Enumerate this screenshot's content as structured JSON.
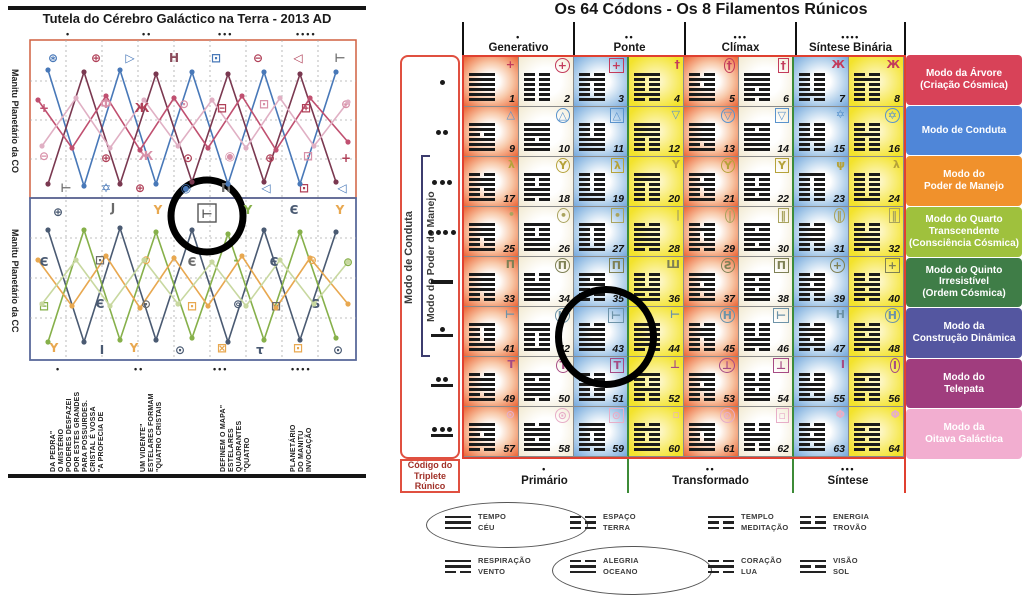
{
  "left_panel": {
    "title": "Tutela do Cérebro Galáctico na Terra - 2013 AD",
    "section_top_label": "Manitu Planetário da CO",
    "section_bottom_label": "Manitu Planetário da CC",
    "top_dots": [
      "•",
      "••",
      "•••",
      "••••"
    ],
    "bottom_dots": [
      "•",
      "••",
      "•••",
      "••••"
    ],
    "footnotes": [
      {
        "dots": "•",
        "lines": [
          "\"A PROFECIA DE",
          "CRISTAL É VOSSA",
          "PARA POSSUIRDES.",
          "POR ESTES GRANDES",
          "PODERES DESFAZEI",
          "O MISTÉRIO",
          "DA PEDRA\""
        ]
      },
      {
        "dots": "••",
        "lines": [
          "\"QUATRO CRISTAIS",
          "ESTELARES FORMAM",
          "UM VIDENTE\""
        ]
      },
      {
        "dots": "•••",
        "lines": [
          "\"QUATRO",
          "QUADRANTES",
          "ESTELARES",
          "DEFINEM O MAPA\""
        ]
      },
      {
        "dots": "••••",
        "lines": [
          "INVOCAÇÃO",
          "DO MANITU",
          "PLANETÁRIO"
        ]
      }
    ],
    "symbols": [
      [
        45,
        24,
        "⊛",
        "#4878b8"
      ],
      [
        88,
        24,
        "⊕",
        "#b04058"
      ],
      [
        122,
        24,
        "▷",
        "#4878b8"
      ],
      [
        166,
        24,
        "H",
        "#8a4a5a"
      ],
      [
        208,
        24,
        "⊡",
        "#4878b8"
      ],
      [
        250,
        24,
        "⊖",
        "#b04058"
      ],
      [
        290,
        24,
        "◁",
        "#b04058"
      ],
      [
        332,
        24,
        "⊢",
        "#707070"
      ],
      [
        36,
        74,
        "+",
        "#c05070"
      ],
      [
        98,
        70,
        "Ф",
        "#d890a8"
      ],
      [
        134,
        74,
        "Ж",
        "#b04058"
      ],
      [
        176,
        70,
        "⊙",
        "#d890a8"
      ],
      [
        214,
        74,
        "⊟",
        "#b04058"
      ],
      [
        256,
        70,
        "⊡",
        "#d890a8"
      ],
      [
        298,
        74,
        "⊞",
        "#b04058"
      ],
      [
        338,
        70,
        "⊕",
        "#d890a8"
      ],
      [
        36,
        122,
        "⊖",
        "#d890a8"
      ],
      [
        98,
        124,
        "⊕",
        "#b04058"
      ],
      [
        138,
        122,
        "Ж",
        "#d890a8"
      ],
      [
        180,
        124,
        "⊙",
        "#b04058"
      ],
      [
        222,
        122,
        "◉",
        "#d890a8"
      ],
      [
        262,
        124,
        "⊕",
        "#b04058"
      ],
      [
        300,
        122,
        "⊡",
        "#d890a8"
      ],
      [
        338,
        124,
        "+",
        "#b04058"
      ],
      [
        58,
        154,
        "⊢",
        "#707070"
      ],
      [
        98,
        154,
        "✡",
        "#4878b8"
      ],
      [
        132,
        154,
        "⊕",
        "#b04058"
      ],
      [
        178,
        154,
        "◉",
        "#4878b8"
      ],
      [
        218,
        154,
        "П",
        "#707070"
      ],
      [
        258,
        154,
        "◁",
        "#4878b8"
      ],
      [
        296,
        154,
        "⊡",
        "#b04058"
      ],
      [
        334,
        154,
        "◁",
        "#4878b8"
      ],
      [
        50,
        178,
        "⊕",
        "#4a5a72"
      ],
      [
        105,
        174,
        "J",
        "#6a6a6a"
      ],
      [
        150,
        176,
        "Y",
        "#e8a850"
      ],
      [
        240,
        176,
        "Y",
        "#86b04a"
      ],
      [
        286,
        176,
        "Є",
        "#4a5a72"
      ],
      [
        332,
        176,
        "Y",
        "#e8a850"
      ],
      [
        36,
        228,
        "Є",
        "#4a5a72"
      ],
      [
        92,
        226,
        "⊡",
        "#6a6a6a"
      ],
      [
        138,
        226,
        "⊙",
        "#e8a850"
      ],
      [
        184,
        228,
        "Є",
        "#6a6a6a"
      ],
      [
        228,
        226,
        "-",
        "#86b04a"
      ],
      [
        266,
        228,
        "Є",
        "#4a5a72"
      ],
      [
        304,
        226,
        "⊖",
        "#e8a850"
      ],
      [
        340,
        228,
        "⊖",
        "#86b04a"
      ],
      [
        36,
        272,
        "⊟",
        "#86b04a"
      ],
      [
        92,
        270,
        "Є",
        "#4a5a72"
      ],
      [
        138,
        270,
        "⊙",
        "#6a6a6a"
      ],
      [
        184,
        272,
        "⊡",
        "#e8a850"
      ],
      [
        230,
        270,
        "⊚",
        "#4a5a72"
      ],
      [
        268,
        272,
        "⊟",
        "#6a6a6a"
      ],
      [
        308,
        270,
        "S",
        "#4a5a72"
      ],
      [
        46,
        314,
        "Y",
        "#e8a850"
      ],
      [
        94,
        316,
        "I",
        "#4a5a72"
      ],
      [
        126,
        314,
        "Y",
        "#e8a850"
      ],
      [
        172,
        316,
        "⊙",
        "#4a5a72"
      ],
      [
        214,
        314,
        "⊠",
        "#e8a850"
      ],
      [
        252,
        316,
        "τ",
        "#4a5a72"
      ],
      [
        290,
        314,
        "⊡",
        "#e8a850"
      ],
      [
        330,
        316,
        "⊙",
        "#4a5a72"
      ]
    ]
  },
  "codon_table": {
    "title": "Os 64 Códons - Os 8 Filamentos Rúnicos",
    "column_groups": [
      {
        "dots": "•",
        "label": "Generativo"
      },
      {
        "dots": "••",
        "label": "Ponte"
      },
      {
        "dots": "•••",
        "label": "Clímax"
      },
      {
        "dots": "••••",
        "label": "Síntese Binária"
      }
    ],
    "left_labels": {
      "conduta": "Modo de Conduta",
      "manejo": "Modo do Poder de Manejo"
    },
    "corner_label": "Código do\nTriplete Rúnico",
    "footer_groups": [
      {
        "dots": "•",
        "label": "Primário"
      },
      {
        "dots": "••",
        "label": "Transformado"
      },
      {
        "dots": "•••",
        "label": "Síntese"
      }
    ],
    "row_modes": [
      {
        "label": "Modo da Árvore\n(Criação Cósmica)",
        "color": "#d84258"
      },
      {
        "label": "Modo de Conduta",
        "color": "#4f86d8"
      },
      {
        "label": "Modo do\nPoder de Manejo",
        "color": "#f0912c"
      },
      {
        "label": "Modo do Quarto\nTranscendente\n(Consciência Cósmica)",
        "color": "#9fc13d"
      },
      {
        "label": "Modo do Quinto\nIrresistível\n(Ordem Cósmica)",
        "color": "#3f7d47"
      },
      {
        "label": "Modo da\nConstrução Dinâmica",
        "color": "#5456a0"
      },
      {
        "label": "Modo do\nTelepata",
        "color": "#a03d7e"
      },
      {
        "label": "Modo da\nOitava Galáctica",
        "color": "#f2aed0"
      }
    ],
    "row_markers": [
      {
        "dots": 1,
        "bar": false
      },
      {
        "dots": 2,
        "bar": false
      },
      {
        "dots": 3,
        "bar": false
      },
      {
        "dots": 4,
        "bar": false
      },
      {
        "dots": 0,
        "bar": true
      },
      {
        "dots": 1,
        "bar": true
      },
      {
        "dots": 2,
        "bar": true
      },
      {
        "dots": 3,
        "bar": true
      }
    ],
    "column_tints": [
      "red",
      "cream",
      "blue",
      "yellow",
      "red",
      "cream",
      "blue",
      "yellow"
    ],
    "numbers": [
      1,
      2,
      3,
      4,
      5,
      6,
      7,
      8,
      9,
      10,
      11,
      12,
      13,
      14,
      15,
      16,
      17,
      18,
      19,
      20,
      21,
      22,
      23,
      24,
      25,
      26,
      27,
      28,
      29,
      30,
      31,
      32,
      33,
      34,
      35,
      36,
      37,
      38,
      39,
      40,
      41,
      42,
      43,
      44,
      45,
      46,
      47,
      48,
      49,
      50,
      51,
      52,
      53,
      54,
      55,
      56,
      57,
      58,
      59,
      60,
      61,
      62,
      63,
      64
    ],
    "hexagrams": [
      "111111",
      "000000",
      "010001",
      "100010",
      "010111",
      "111010",
      "000010",
      "010000",
      "110111",
      "111011",
      "000111",
      "111000",
      "111101",
      "101111",
      "000100",
      "001000",
      "011001",
      "100110",
      "000011",
      "110000",
      "101001",
      "100101",
      "100000",
      "000001",
      "111001",
      "100111",
      "100001",
      "011110",
      "010010",
      "101101",
      "011100",
      "001110",
      "111100",
      "001111",
      "101000",
      "000101",
      "110101",
      "101011",
      "010100",
      "001010",
      "100011",
      "110001",
      "011111",
      "111110",
      "011000",
      "000110",
      "011010",
      "010110",
      "011101",
      "101110",
      "001001",
      "100100",
      "110100",
      "001011",
      "001101",
      "101100",
      "110110",
      "011011",
      "110010",
      "010011",
      "110011",
      "001100",
      "010101",
      "101010"
    ],
    "glyphs": [
      "+",
      "+",
      "+",
      "†",
      "†",
      "†",
      "Ж",
      "Ж",
      "△",
      "△",
      "△",
      "▽",
      "▽",
      "▽",
      "✡",
      "✡",
      "λ",
      "Y",
      "λ",
      "Y",
      "Y",
      "Y",
      "ψ",
      "λ",
      "•",
      "•",
      "•",
      "|",
      "|",
      "‖",
      "‖",
      "‖",
      "П",
      "П",
      "П",
      "Ш",
      "Ƨ",
      "П",
      "+",
      "+",
      "⊢",
      "H",
      "⊢",
      "⊢",
      "H",
      "⊢",
      "H",
      "H",
      "T",
      "T",
      "T",
      "⊥",
      "⊥",
      "⊥",
      "I",
      "I",
      "⊙",
      "⊙",
      "⊙",
      "▫",
      "⊙",
      "▫",
      "Φ",
      "Φ"
    ],
    "frames": [
      "n",
      "c",
      "s",
      "n",
      "c",
      "s",
      "n",
      "n",
      "n",
      "c",
      "s",
      "n",
      "c",
      "s",
      "n",
      "c",
      "n",
      "c",
      "s",
      "n",
      "c",
      "s",
      "n",
      "n",
      "n",
      "c",
      "s",
      "n",
      "c",
      "s",
      "c",
      "s",
      "n",
      "c",
      "s",
      "n",
      "c",
      "s",
      "c",
      "s",
      "n",
      "c",
      "s",
      "n",
      "c",
      "s",
      "n",
      "c",
      "n",
      "c",
      "s",
      "n",
      "c",
      "s",
      "n",
      "c",
      "n",
      "c",
      "s",
      "n",
      "c",
      "s",
      "n",
      "n"
    ],
    "glyph_colors": [
      "#c33b5b",
      "#5a93cc",
      "#b5a23a",
      "#a9a35e",
      "#7e8054",
      "#6d93a8",
      "#a64b84",
      "#e7aec8"
    ],
    "highlighted_codon": 43
  },
  "legend": {
    "items": [
      {
        "trigram": "111",
        "label": "TEMPO\nCÉU",
        "circled": true
      },
      {
        "trigram": "000",
        "label": "ESPAÇO\nTERRA",
        "circled": false
      },
      {
        "trigram": "100",
        "label": "TEMPLO\nMEDITAÇÃO",
        "circled": false
      },
      {
        "trigram": "001",
        "label": "ENERGIA\nTROVÃO",
        "circled": false
      },
      {
        "trigram": "110",
        "label": "RESPIRAÇÃO\nVENTO",
        "circled": false
      },
      {
        "trigram": "011",
        "label": "ALEGRIA\nOCEANO",
        "circled": true
      },
      {
        "trigram": "010",
        "label": "CORAÇÃO\nLUA",
        "circled": false
      },
      {
        "trigram": "101",
        "label": "VISÃO\nSOL",
        "circled": false
      }
    ]
  }
}
